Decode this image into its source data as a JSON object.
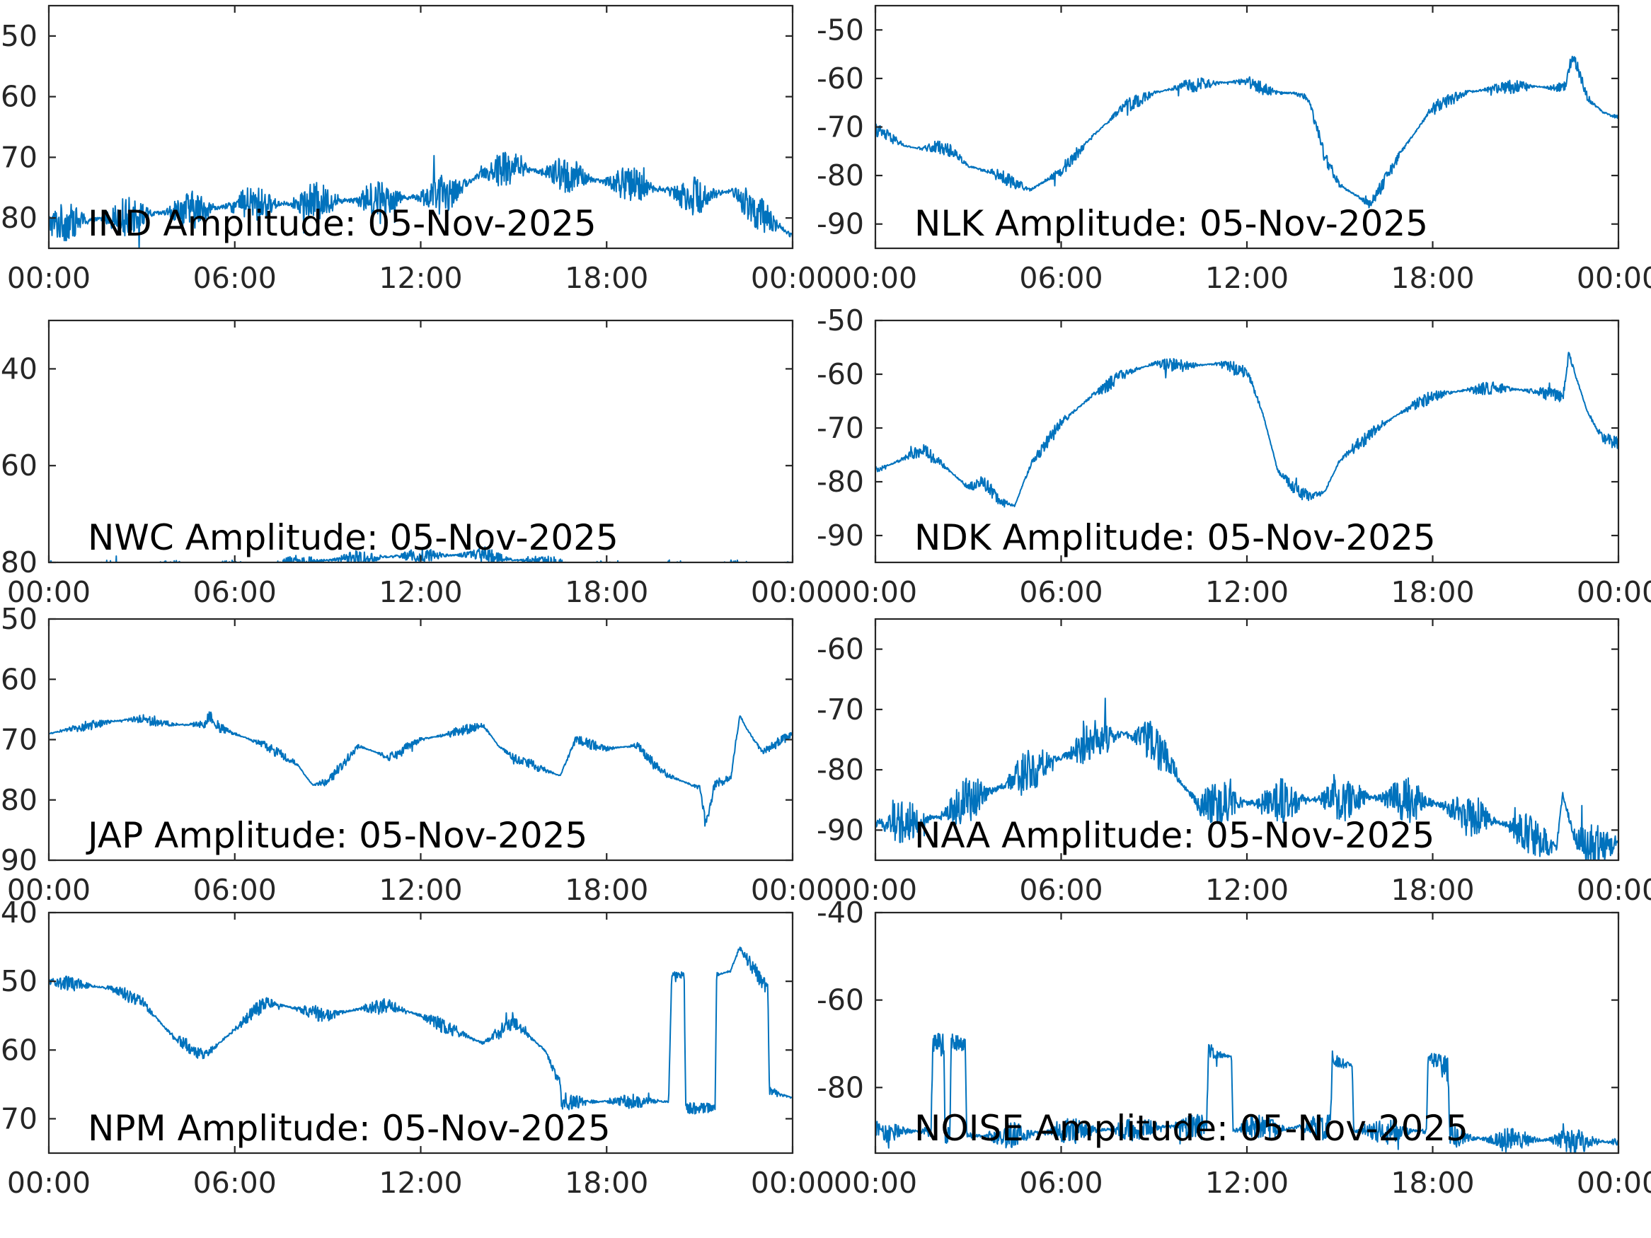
{
  "colors": {
    "line": "#0072BD",
    "axis": "#262626",
    "title": "#000000",
    "background": "#FFFFFF"
  },
  "chart_data": [
    {
      "type": "line",
      "title": "IND Amplitude: 05-Nov-2025",
      "x_ticks": [
        "00:00",
        "06:00",
        "12:00",
        "18:00",
        "00:00"
      ],
      "y_ticks": [
        "50",
        "60",
        "70",
        "80"
      ],
      "y_tick_values": [
        -50,
        -60,
        -70,
        -80
      ],
      "ylim": [
        -85,
        -45
      ],
      "xlim_hours": [
        0,
        24
      ],
      "series": [
        {
          "name": "IND",
          "x_hours": [
            0,
            2,
            4,
            6,
            8,
            10,
            12,
            13,
            14,
            15,
            16,
            18,
            20,
            21,
            22,
            23,
            24
          ],
          "y": [
            -81,
            -80,
            -79,
            -78,
            -77.5,
            -77,
            -76.5,
            -76,
            -72.5,
            -71.5,
            -72.5,
            -74,
            -75.5,
            -76.5,
            -75.5,
            -79.5,
            -83
          ],
          "noise": 3.2
        }
      ]
    },
    {
      "type": "line",
      "title": "NLK Amplitude: 05-Nov-2025",
      "x_ticks": [
        "00:00",
        "06:00",
        "12:00",
        "18:00",
        "00:00"
      ],
      "y_ticks": [
        "-50",
        "-60",
        "-70",
        "-80",
        "-90"
      ],
      "y_tick_values": [
        -50,
        -60,
        -70,
        -80,
        -90
      ],
      "ylim": [
        -95,
        -45
      ],
      "xlim_hours": [
        0,
        24
      ],
      "series": [
        {
          "name": "NLK",
          "x_hours": [
            0,
            1,
            1.5,
            2,
            2.5,
            3,
            4,
            5,
            6,
            7,
            8,
            9,
            10,
            11,
            12,
            12.5,
            13,
            13.5,
            14,
            14.5,
            15,
            15.5,
            16,
            17,
            18,
            19,
            20,
            21,
            22,
            22.3,
            22.5,
            22.7,
            23,
            23.5,
            24
          ],
          "y": [
            -70.5,
            -74,
            -74.5,
            -74,
            -75,
            -78,
            -80,
            -83,
            -79,
            -72,
            -66,
            -63,
            -61.5,
            -61,
            -60.5,
            -62,
            -63,
            -63,
            -64,
            -76,
            -82,
            -84,
            -86,
            -75,
            -66,
            -63,
            -62,
            -61.5,
            -62,
            -61.5,
            -55,
            -58,
            -64,
            -67,
            -68
          ],
          "noise": 1.4
        }
      ]
    },
    {
      "type": "line",
      "title": "NWC Amplitude: 05-Nov-2025",
      "x_ticks": [
        "00:00",
        "06:00",
        "12:00",
        "18:00",
        "00:00"
      ],
      "y_ticks": [
        "40",
        "60",
        "80"
      ],
      "y_tick_values": [
        -40,
        -60,
        -80
      ],
      "ylim": [
        -80,
        -30
      ],
      "xlim_hours": [
        0,
        24
      ],
      "series": [
        {
          "name": "NWC",
          "x_hours": [
            0,
            6,
            9,
            12,
            14,
            15,
            18,
            24
          ],
          "y": [
            -81,
            -81,
            -79.5,
            -78.5,
            -78.5,
            -79.5,
            -81,
            -81
          ],
          "noise": 1.6
        }
      ]
    },
    {
      "type": "line",
      "title": "NDK Amplitude: 05-Nov-2025",
      "x_ticks": [
        "00:00",
        "06:00",
        "12:00",
        "18:00",
        "00:00"
      ],
      "y_ticks": [
        "-50",
        "-60",
        "-70",
        "-80",
        "-90"
      ],
      "y_tick_values": [
        -50,
        -60,
        -70,
        -80,
        -90
      ],
      "ylim": [
        -95,
        -50
      ],
      "xlim_hours": [
        0,
        24
      ],
      "series": [
        {
          "name": "NDK",
          "x_hours": [
            0,
            1,
            1.5,
            2,
            3,
            3.5,
            4,
            4.5,
            5,
            6,
            7,
            8,
            9,
            10,
            11,
            12,
            12.5,
            13,
            13.5,
            14,
            14.5,
            15,
            16,
            17,
            18,
            19,
            20,
            21,
            22,
            22.2,
            22.4,
            22.6,
            23,
            23.5,
            24
          ],
          "y": [
            -78,
            -75.5,
            -74,
            -76,
            -81,
            -80,
            -83.5,
            -84.5,
            -77,
            -69,
            -64,
            -60,
            -58,
            -58.5,
            -58,
            -59.5,
            -67,
            -78,
            -81,
            -83,
            -82,
            -76,
            -71,
            -67,
            -64,
            -63,
            -62.5,
            -63,
            -64,
            -64.5,
            -56,
            -60,
            -67,
            -72,
            -73
          ],
          "noise": 1.3
        }
      ]
    },
    {
      "type": "line",
      "title": "JAP Amplitude: 05-Nov-2025",
      "x_ticks": [
        "00:00",
        "06:00",
        "12:00",
        "18:00",
        "00:00"
      ],
      "y_ticks": [
        "50",
        "60",
        "70",
        "80",
        "90"
      ],
      "y_tick_values": [
        -50,
        -60,
        -70,
        -80,
        -90
      ],
      "ylim": [
        -90,
        -50
      ],
      "xlim_hours": [
        0,
        24
      ],
      "series": [
        {
          "name": "JAP",
          "x_hours": [
            0,
            1,
            2,
            3,
            4,
            5,
            5.2,
            5.5,
            6,
            7,
            8,
            8.5,
            9,
            10,
            11,
            12,
            13,
            14,
            14.5,
            15,
            16,
            16.5,
            17,
            18,
            19,
            19.5,
            20,
            21,
            21.2,
            21.5,
            22,
            22.3,
            22.5,
            23,
            24
          ],
          "y": [
            -69,
            -68,
            -67,
            -66.5,
            -67.5,
            -67.5,
            -66,
            -68,
            -69,
            -71,
            -74,
            -77.5,
            -77,
            -71,
            -73,
            -70,
            -69,
            -67.5,
            -71,
            -73,
            -75,
            -76,
            -70,
            -71.5,
            -71,
            -74,
            -76,
            -78,
            -84,
            -77,
            -76.5,
            -66,
            -68,
            -72,
            -69
          ],
          "noise": 0.9
        }
      ]
    },
    {
      "type": "line",
      "title": "NAA Amplitude: 05-Nov-2025",
      "x_ticks": [
        "00:00",
        "06:00",
        "12:00",
        "18:00",
        "00:00"
      ],
      "y_ticks": [
        "-60",
        "-70",
        "-80",
        "-90"
      ],
      "y_tick_values": [
        -60,
        -70,
        -80,
        -90
      ],
      "ylim": [
        -95,
        -55
      ],
      "xlim_hours": [
        0,
        24
      ],
      "series": [
        {
          "name": "NAA",
          "x_hours": [
            0,
            2,
            3,
            4,
            5,
            6,
            7,
            8,
            9,
            9.5,
            10,
            10.5,
            11,
            12,
            14,
            16,
            18,
            20,
            21,
            22,
            22.2,
            22.4,
            22.6,
            23,
            24
          ],
          "y": [
            -89,
            -88,
            -85,
            -83,
            -80,
            -78,
            -75.5,
            -74,
            -75.5,
            -79,
            -83,
            -86,
            -85.5,
            -85.5,
            -85,
            -84.5,
            -85.5,
            -88.5,
            -90.5,
            -93,
            -84,
            -88,
            -91,
            -93,
            -92
          ],
          "noise": 3.8
        }
      ]
    },
    {
      "type": "line",
      "title": "NPM Amplitude: 05-Nov-2025",
      "x_ticks": [
        "00:00",
        "06:00",
        "12:00",
        "18:00",
        "00:00"
      ],
      "y_ticks": [
        "40",
        "50",
        "60",
        "70"
      ],
      "y_tick_values": [
        -40,
        -50,
        -60,
        -70
      ],
      "ylim": [
        -75,
        -40
      ],
      "xlim_hours": [
        0,
        24
      ],
      "series": [
        {
          "name": "NPM",
          "x_hours": [
            0,
            1,
            2,
            3,
            4,
            5,
            6,
            7,
            8,
            9,
            10,
            11,
            12,
            13,
            14,
            15,
            16,
            16.5,
            16.55,
            17,
            18,
            20,
            20.1,
            20.15,
            20.5,
            20.55,
            21,
            21.5,
            21.55,
            22,
            22.3,
            23,
            23.2,
            23.25,
            24
          ],
          "y": [
            -50,
            -50.5,
            -51,
            -53,
            -58,
            -61,
            -57,
            -53,
            -54,
            -55,
            -54,
            -53.5,
            -55,
            -57,
            -59,
            -56,
            -60,
            -65,
            -68,
            -67.5,
            -67.5,
            -67.5,
            -49,
            -49,
            -49,
            -68.5,
            -68.5,
            -68.5,
            -49,
            -48.5,
            -45,
            -50,
            -51,
            -66,
            -67
          ],
          "noise": 1.1
        }
      ]
    },
    {
      "type": "line",
      "title": "NOISE Amplitude: 05-Nov-2025",
      "x_ticks": [
        "00:00",
        "06:00",
        "12:00",
        "18:00",
        "00:00"
      ],
      "y_ticks": [
        "-40",
        "-60",
        "-80"
      ],
      "y_tick_values": [
        -40,
        -60,
        -80
      ],
      "ylim": [
        -95,
        -40
      ],
      "xlim_hours": [
        0,
        24
      ],
      "series": [
        {
          "name": "NOISE",
          "x_hours": [
            0,
            1.8,
            1.85,
            2.2,
            2.25,
            2.4,
            2.45,
            2.9,
            2.95,
            4,
            6,
            8,
            9,
            10.7,
            10.75,
            11.5,
            11.55,
            12,
            13,
            14,
            14.7,
            14.75,
            15.4,
            15.45,
            17,
            17.8,
            17.85,
            18.5,
            18.55,
            20,
            22,
            24
          ],
          "y": [
            -90,
            -90,
            -70,
            -70,
            -90,
            -90,
            -70,
            -70,
            -91,
            -91,
            -90,
            -89.5,
            -89,
            -89,
            -72,
            -73,
            -90,
            -89,
            -89.5,
            -89,
            -89,
            -74,
            -75,
            -90,
            -90,
            -90,
            -73,
            -76,
            -91,
            -92,
            -92,
            -92.5
          ],
          "noise": 3
        }
      ]
    }
  ]
}
